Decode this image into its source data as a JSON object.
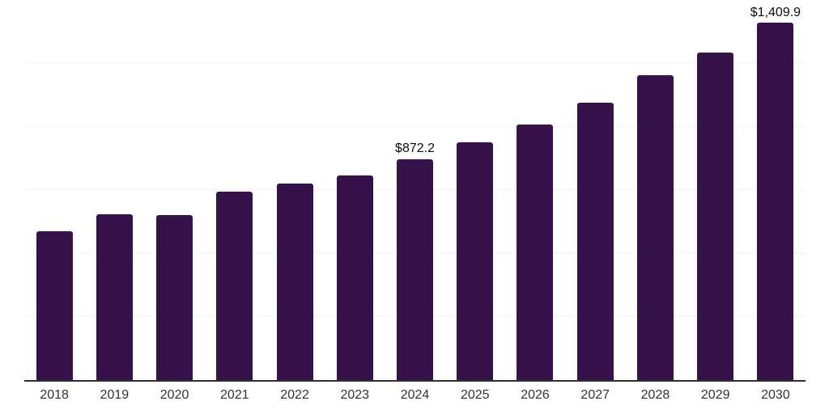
{
  "chart_data": {
    "type": "bar",
    "title": "",
    "xlabel": "",
    "ylabel": "",
    "categories": [
      "2018",
      "2019",
      "2020",
      "2021",
      "2022",
      "2023",
      "2024",
      "2025",
      "2026",
      "2027",
      "2028",
      "2029",
      "2030"
    ],
    "values": [
      588,
      654,
      651,
      743,
      775,
      808,
      872.2,
      938,
      1008,
      1094,
      1204,
      1294,
      1409.9
    ],
    "data_labels": {
      "2024": "$872.2",
      "2030": "$1,409.9"
    },
    "ylim": [
      0,
      1500
    ],
    "gridline_step": 250,
    "grid": "horizontal-only",
    "legend": "none",
    "colors": {
      "bar": "#36124B",
      "axis_line": "#2e2e2e",
      "gridline": "#f3f3f5",
      "tick_label": "#333333",
      "data_label": "#0d0d0d",
      "background": "#ffffff"
    }
  }
}
